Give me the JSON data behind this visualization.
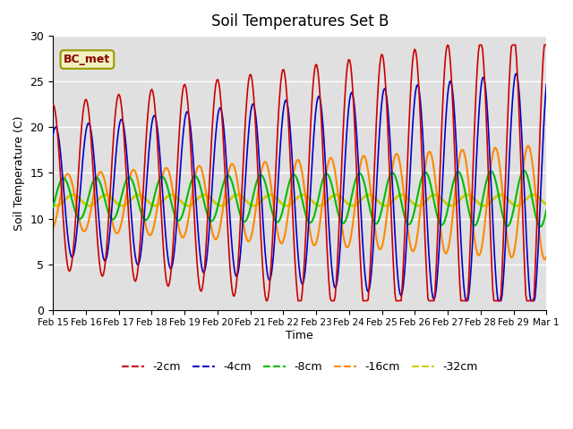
{
  "title": "Soil Temperatures Set B",
  "xlabel": "Time",
  "ylabel": "Soil Temperature (C)",
  "ylim": [
    0,
    30
  ],
  "annotation": "BC_met",
  "background_color": "#e0e0e0",
  "series_colors": {
    "-2cm": "#cc0000",
    "-4cm": "#0000cc",
    "-8cm": "#00bb00",
    "-16cm": "#ff8800",
    "-32cm": "#cccc00"
  },
  "x_labels": [
    "Feb 15",
    "Feb 16",
    "Feb 17",
    "Feb 18",
    "Feb 19",
    "Feb 20",
    "Feb 21",
    "Feb 22",
    "Feb 23",
    "Feb 24",
    "Feb 25",
    "Feb 26",
    "Feb 27",
    "Feb 28",
    "Feb 29",
    "Mar 1"
  ],
  "num_points": 480
}
